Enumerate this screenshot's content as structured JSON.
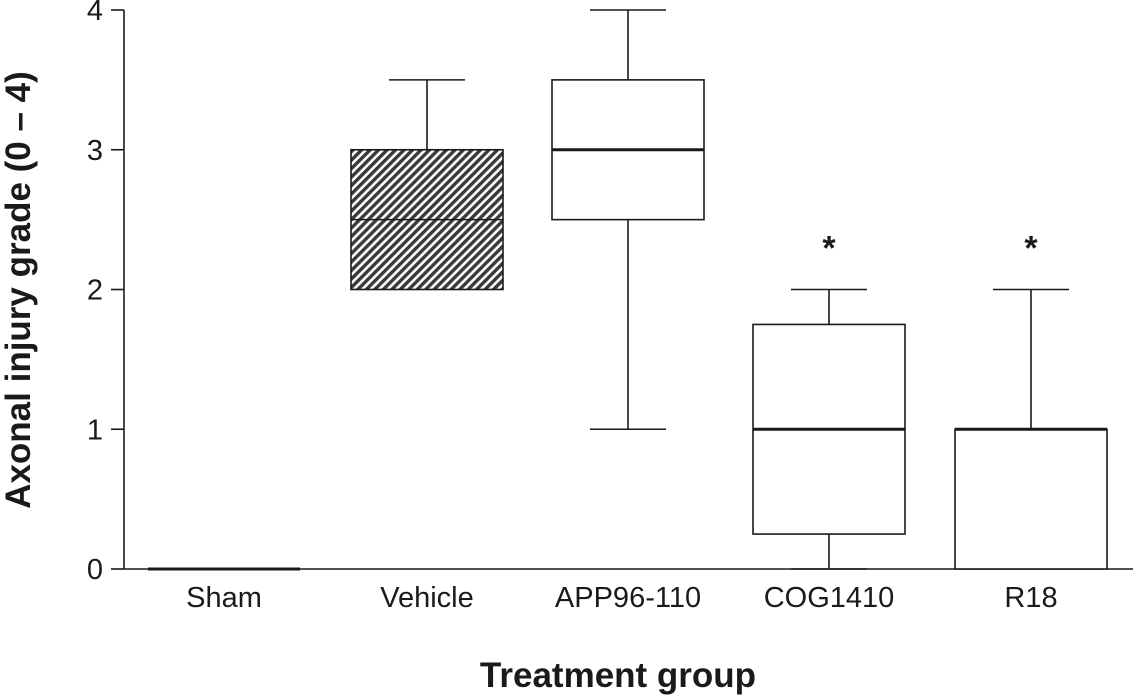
{
  "chart_data": {
    "type": "box",
    "xlabel": "Treatment group",
    "ylabel": "Axonal injury grade (0 – 4)",
    "ylim": [
      0,
      4
    ],
    "yticks": [
      "0",
      "1",
      "2",
      "3",
      "4"
    ],
    "categories": [
      "Sham",
      "Vehicle",
      "APP96-110",
      "COG1410",
      "R18"
    ],
    "boxes": [
      {
        "category": "Sham",
        "min": 0,
        "q1": 0,
        "median": 0,
        "q3": 0,
        "max": 0,
        "significance": "",
        "fill": "none"
      },
      {
        "category": "Vehicle",
        "min": 2,
        "q1": 2,
        "median": 2.5,
        "q3": 3,
        "max": 3.5,
        "significance": "",
        "fill": "hatched"
      },
      {
        "category": "APP96-110",
        "min": 1,
        "q1": 2.5,
        "median": 3,
        "q3": 3.5,
        "max": 4,
        "significance": "",
        "fill": "none"
      },
      {
        "category": "COG1410",
        "min": 0,
        "q1": 0.25,
        "median": 1,
        "q3": 1.75,
        "max": 2,
        "significance": "*",
        "fill": "none"
      },
      {
        "category": "R18",
        "min": 0,
        "q1": 0,
        "median": 1,
        "q3": 1,
        "max": 2,
        "significance": "*",
        "fill": "none"
      }
    ],
    "grid": false,
    "legend": "none"
  },
  "colors": {
    "line": "#1a1a1a",
    "hatch_fill": "#3a3a3a",
    "background": "#ffffff"
  }
}
